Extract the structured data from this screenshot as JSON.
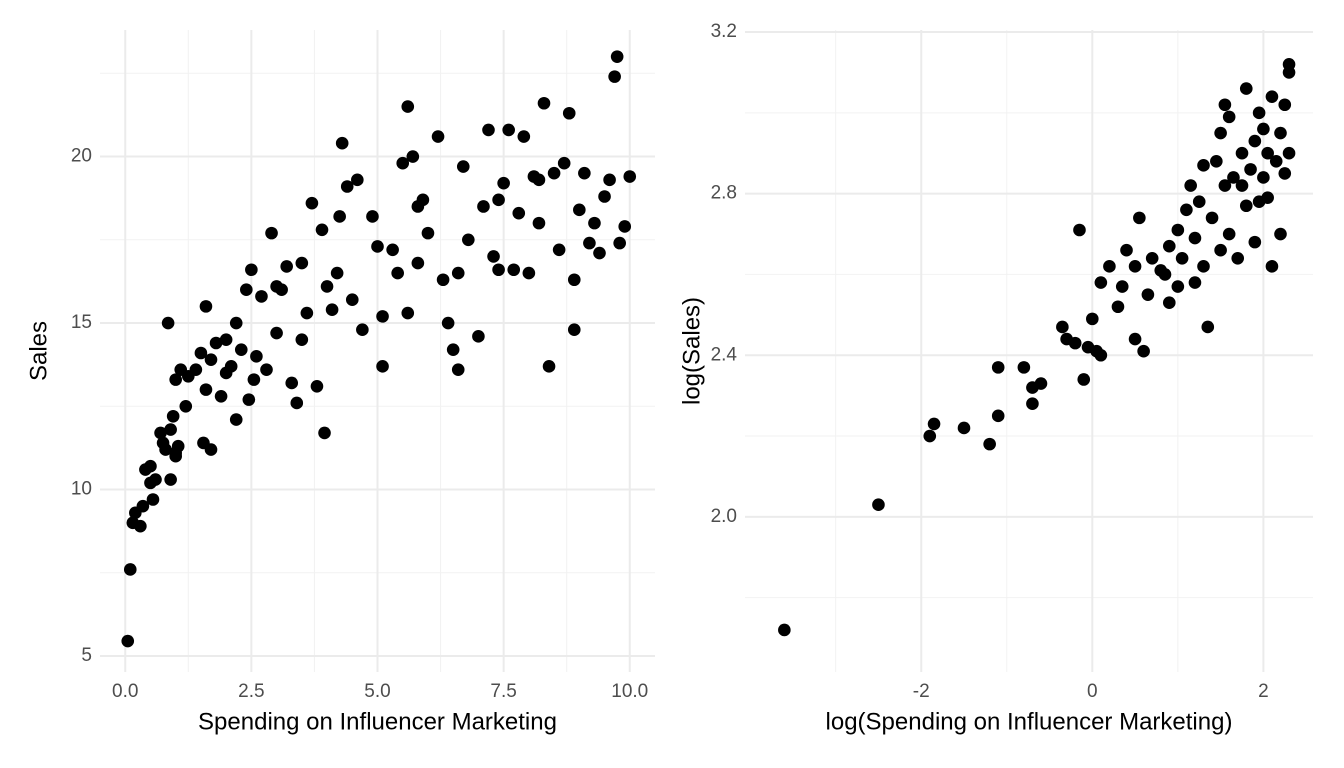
{
  "chart_data": [
    {
      "type": "scatter",
      "xlabel": "Spending on Influencer Marketing",
      "ylabel": "Sales",
      "xlim": [
        -0.5,
        10.5
      ],
      "ylim": [
        4.52,
        23.8
      ],
      "xticks": [
        {
          "value": 0,
          "label": "0.0"
        },
        {
          "value": 2.5,
          "label": "2.5"
        },
        {
          "value": 5,
          "label": "5.0"
        },
        {
          "value": 7.5,
          "label": "7.5"
        },
        {
          "value": 10,
          "label": "10.0"
        }
      ],
      "yticks": [
        5,
        10,
        15,
        20
      ],
      "grid": true,
      "minor_grid": true,
      "color": "#000000",
      "x": [
        0.05,
        0.1,
        0.15,
        0.2,
        0.3,
        0.35,
        0.4,
        0.5,
        0.5,
        0.55,
        0.6,
        0.7,
        0.75,
        0.8,
        0.85,
        0.9,
        0.9,
        0.95,
        1.0,
        1.0,
        1.05,
        1.1,
        1.2,
        1.25,
        1.4,
        1.5,
        1.55,
        1.6,
        1.6,
        1.7,
        1.7,
        1.8,
        1.9,
        2.0,
        2.1,
        2.2,
        2.2,
        2.3,
        2.4,
        2.45,
        2.5,
        2.55,
        2.6,
        2.7,
        2.8,
        2.9,
        3.0,
        3.1,
        3.2,
        3.3,
        3.4,
        3.5,
        3.5,
        3.6,
        3.7,
        3.8,
        3.9,
        3.95,
        4.0,
        4.1,
        4.2,
        4.25,
        4.3,
        4.4,
        4.5,
        4.6,
        4.7,
        4.9,
        5.0,
        5.1,
        5.1,
        5.3,
        5.4,
        5.5,
        5.6,
        5.6,
        5.7,
        5.8,
        5.9,
        6.0,
        6.2,
        6.3,
        6.4,
        6.5,
        6.6,
        6.7,
        6.8,
        7.0,
        7.1,
        7.2,
        7.3,
        7.4,
        7.5,
        7.6,
        7.7,
        7.8,
        7.9,
        8.0,
        8.1,
        8.2,
        8.3,
        8.4,
        8.5,
        8.6,
        8.7,
        8.8,
        8.9,
        8.9,
        9.0,
        9.1,
        9.2,
        9.4,
        9.5,
        9.6,
        9.7,
        9.75,
        9.8,
        9.9,
        10.0,
        9.3,
        8.2,
        7.4,
        6.6,
        5.8,
        3.0,
        2.0,
        1.0
      ],
      "y": [
        5.45,
        7.6,
        9.0,
        9.3,
        8.9,
        9.5,
        10.6,
        10.7,
        10.2,
        9.7,
        10.3,
        11.7,
        11.4,
        11.2,
        15.0,
        10.3,
        11.8,
        12.2,
        11.0,
        13.3,
        11.3,
        13.6,
        12.5,
        13.4,
        13.6,
        14.1,
        11.4,
        15.5,
        13.0,
        11.2,
        13.9,
        14.4,
        12.8,
        14.5,
        13.7,
        15.0,
        12.1,
        14.2,
        16.0,
        12.7,
        16.6,
        13.3,
        14.0,
        15.8,
        13.6,
        17.7,
        14.7,
        16.0,
        16.7,
        13.2,
        12.6,
        16.8,
        14.5,
        15.3,
        18.6,
        13.1,
        17.8,
        11.7,
        16.1,
        15.4,
        16.5,
        18.2,
        20.4,
        19.1,
        15.7,
        19.3,
        14.8,
        18.2,
        17.3,
        15.2,
        13.7,
        17.2,
        16.5,
        19.8,
        21.5,
        15.3,
        20.0,
        16.8,
        18.7,
        17.7,
        20.6,
        16.3,
        15.0,
        14.2,
        13.6,
        19.7,
        17.5,
        14.6,
        18.5,
        20.8,
        17.0,
        18.7,
        19.2,
        20.8,
        16.6,
        18.3,
        20.6,
        16.5,
        19.4,
        18.0,
        21.6,
        13.7,
        19.5,
        17.2,
        19.8,
        21.3,
        14.8,
        16.3,
        18.4,
        19.5,
        17.4,
        17.1,
        18.8,
        19.3,
        22.4,
        23.0,
        17.4,
        17.9,
        19.4,
        18.0,
        19.3,
        16.6,
        16.5,
        18.5,
        16.1,
        13.5,
        11.1
      ]
    },
    {
      "type": "scatter",
      "xlabel": "log(Spending on Influencer Marketing)",
      "ylabel": "log(Sales)",
      "xlim": [
        -4.06,
        2.58
      ],
      "ylim": [
        1.616,
        3.205
      ],
      "xticks": [
        -2,
        0,
        2
      ],
      "yticks": [
        {
          "value": 2.0,
          "label": "2.0"
        },
        {
          "value": 2.4,
          "label": "2.4"
        },
        {
          "value": 2.8,
          "label": "2.8"
        },
        {
          "value": 3.2,
          "label": "3.2"
        }
      ],
      "grid": true,
      "minor_grid": true,
      "color": "#000000",
      "x": [
        -3.6,
        -2.5,
        -1.9,
        -1.85,
        -1.5,
        -1.2,
        -1.1,
        -1.1,
        -0.8,
        -0.7,
        -0.7,
        -0.6,
        -0.35,
        -0.3,
        -0.2,
        -0.15,
        -0.1,
        -0.05,
        0.0,
        0.05,
        0.1,
        0.1,
        0.2,
        0.3,
        0.35,
        0.4,
        0.5,
        0.5,
        0.55,
        0.6,
        0.65,
        0.7,
        0.8,
        0.9,
        0.9,
        1.0,
        1.0,
        1.05,
        1.1,
        1.15,
        1.2,
        1.2,
        1.3,
        1.3,
        1.35,
        1.4,
        1.45,
        1.5,
        1.5,
        1.55,
        1.6,
        1.6,
        1.65,
        1.7,
        1.75,
        1.8,
        1.8,
        1.85,
        1.9,
        1.9,
        1.95,
        2.0,
        2.0,
        2.05,
        2.1,
        2.1,
        2.15,
        2.2,
        2.2,
        2.25,
        2.3,
        2.3,
        2.3,
        1.25,
        0.85,
        1.75,
        2.05,
        1.55,
        2.25,
        1.95
      ],
      "y": [
        1.72,
        2.03,
        2.2,
        2.23,
        2.22,
        2.18,
        2.25,
        2.37,
        2.37,
        2.28,
        2.32,
        2.33,
        2.47,
        2.44,
        2.43,
        2.71,
        2.34,
        2.42,
        2.49,
        2.41,
        2.4,
        2.58,
        2.62,
        2.52,
        2.57,
        2.66,
        2.44,
        2.62,
        2.74,
        2.41,
        2.55,
        2.64,
        2.61,
        2.67,
        2.53,
        2.71,
        2.57,
        2.64,
        2.76,
        2.82,
        2.58,
        2.69,
        2.87,
        2.62,
        2.47,
        2.74,
        2.88,
        2.95,
        2.66,
        2.82,
        2.7,
        2.99,
        2.84,
        2.64,
        2.9,
        2.77,
        3.06,
        2.86,
        2.93,
        2.68,
        3.0,
        2.84,
        2.96,
        2.79,
        3.04,
        2.62,
        2.88,
        2.95,
        2.7,
        3.02,
        3.12,
        3.1,
        2.9,
        2.78,
        2.6,
        2.82,
        2.9,
        3.02,
        2.85,
        2.78
      ]
    }
  ]
}
